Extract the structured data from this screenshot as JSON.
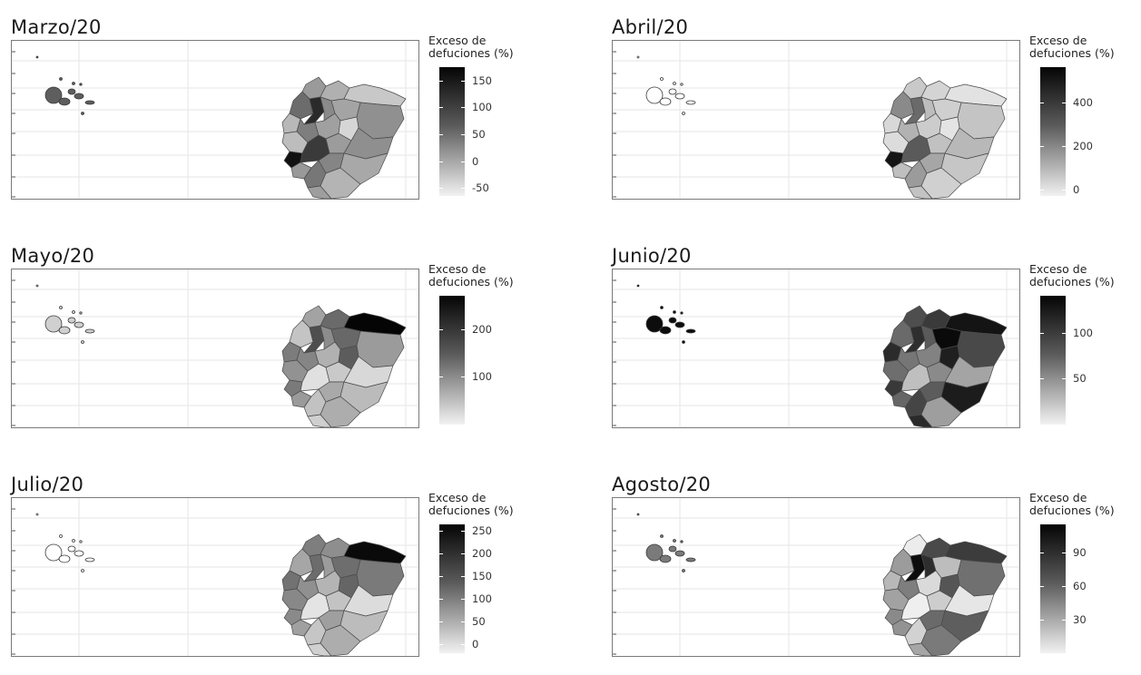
{
  "legend": {
    "title_line1": "Exceso de",
    "title_line2": "defuciones (%)"
  },
  "panels": [
    {
      "title": "Marzo/20",
      "ticks": [
        "150",
        "100",
        "50",
        "0",
        "-50"
      ],
      "range": [
        -65,
        175
      ],
      "tick_values": [
        150,
        100,
        50,
        0,
        -50
      ],
      "shades": [
        "#9a9a9a",
        "#b0b0b0",
        "#6c6c6c",
        "#2a2a2a",
        "#8a8a8a",
        "#c8c8c8",
        "#a4a4a4",
        "#909090",
        "#b8b8b8",
        "#7e7e7e",
        "#a0a0a0",
        "#d6d6d6",
        "#bdbdbd",
        "#9c9c9c",
        "#8f8f8f",
        "#111111",
        "#3a3a3a",
        "#858585",
        "#a8a8a8",
        "#999999",
        "#777777",
        "#b4b4b4",
        "#9e9e9e"
      ],
      "galapagos": "#5e5e5e"
    },
    {
      "title": "Abril/20",
      "ticks": [
        "400",
        "200",
        "0"
      ],
      "range": [
        -30,
        560
      ],
      "tick_values": [
        400,
        200,
        0
      ],
      "shades": [
        "#c9c9c9",
        "#d4d4d4",
        "#8a8a8a",
        "#6a6a6a",
        "#bdbdbd",
        "#e2e2e2",
        "#cfcfcf",
        "#c4c4c4",
        "#d8d8d8",
        "#b2b2b2",
        "#cccccc",
        "#e4e4e4",
        "#dcdcdc",
        "#c1c1c1",
        "#b8b8b8",
        "#141414",
        "#5a5a5a",
        "#a6a6a6",
        "#c6c6c6",
        "#bfbfbf",
        "#9b9b9b",
        "#d0d0d0",
        "#c3c3c3"
      ],
      "galapagos": "#ffffff"
    },
    {
      "title": "Mayo/20",
      "ticks": [
        "200",
        "100"
      ],
      "range": [
        0,
        270
      ],
      "tick_values": [
        200,
        100
      ],
      "shades": [
        "#a3a3a3",
        "#6a6a6a",
        "#c4c4c4",
        "#4e4e4e",
        "#8c8c8c",
        "#050505",
        "#686868",
        "#9b9b9b",
        "#7c7c7c",
        "#858585",
        "#b1b1b1",
        "#5c5c5c",
        "#929292",
        "#c9c9c9",
        "#d8d8d8",
        "#7a7a7a",
        "#e0e0e0",
        "#a9a9a9",
        "#bbbbbb",
        "#9a9a9a",
        "#c2c2c2",
        "#adadad",
        "#cfcfcf"
      ],
      "galapagos": "#d0d0d0"
    },
    {
      "title": "Junio/20",
      "ticks": [
        "100",
        "50"
      ],
      "range": [
        0,
        140
      ],
      "tick_values": [
        100,
        50
      ],
      "shades": [
        "#4e4e4e",
        "#3a3a3a",
        "#6a6a6a",
        "#2e2e2e",
        "#5a5a5a",
        "#141414",
        "#0a0a0a",
        "#494949",
        "#2b2b2b",
        "#767676",
        "#828282",
        "#1f1f1f",
        "#6e6e6e",
        "#8a8a8a",
        "#a4a4a4",
        "#393939",
        "#bfbfbf",
        "#5c5c5c",
        "#1c1c1c",
        "#666666",
        "#454545",
        "#9e9e9e",
        "#2a2a2a"
      ],
      "galapagos": "#0d0d0d"
    },
    {
      "title": "Julio/20",
      "ticks": [
        "250",
        "200",
        "150",
        "100",
        "50",
        "0"
      ],
      "range": [
        -20,
        265
      ],
      "tick_values": [
        250,
        200,
        150,
        100,
        50,
        0
      ],
      "shades": [
        "#7e7e7e",
        "#8e8e8e",
        "#a6a6a6",
        "#6c6c6c",
        "#9c9c9c",
        "#0a0a0a",
        "#6e6e6e",
        "#7a7a7a",
        "#727272",
        "#909090",
        "#b4b4b4",
        "#656565",
        "#888888",
        "#c3c3c3",
        "#dcdcdc",
        "#8a8a8a",
        "#e4e4e4",
        "#9f9f9f",
        "#bcbcbc",
        "#a0a0a0",
        "#c6c6c6",
        "#adadad",
        "#d0d0d0"
      ],
      "galapagos": "#ffffff"
    },
    {
      "title": "Agosto/20",
      "ticks": [
        "90",
        "60",
        "30"
      ],
      "range": [
        0,
        115
      ],
      "tick_values": [
        90,
        60,
        30
      ],
      "shades": [
        "#ececec",
        "#4a4a4a",
        "#9c9c9c",
        "#0c0c0c",
        "#2e2e2e",
        "#3c3c3c",
        "#bdbdbd",
        "#707070",
        "#b8b8b8",
        "#7e7e7e",
        "#dadada",
        "#555555",
        "#a2a2a2",
        "#cdcdcd",
        "#e6e6e6",
        "#8a8a8a",
        "#efefef",
        "#6a6a6a",
        "#5e5e5e",
        "#939393",
        "#d2d2d2",
        "#7a7a7a",
        "#a6a6a6"
      ],
      "galapagos": "#7a7a7a"
    }
  ]
}
